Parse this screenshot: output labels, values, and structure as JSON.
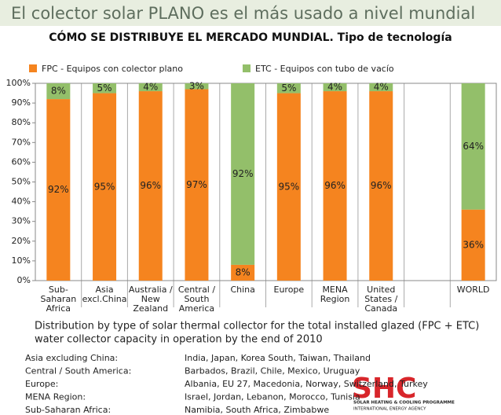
{
  "chart_data": {
    "type": "stacked_bar",
    "title": "El colector solar PLANO es el más usado a nivel mundial",
    "subtitle": "CÓMO SE DISTRIBUYE EL MERCADO MUNDIAL. Tipo de tecnología",
    "categories": [
      "Sub-\nSaharan\nAfrica",
      "Asia\nexcl.China",
      "Australia /\nNew\nZealand",
      "Central /\nSouth\nAmerica",
      "China",
      "Europe",
      "MENA\nRegion",
      "United\nStates /\nCanada",
      null,
      "WORLD"
    ],
    "series": [
      {
        "name": "FPC - Equipos con colector plano",
        "color": "#f5841f",
        "values": [
          92,
          95,
          96,
          97,
          8,
          95,
          96,
          96,
          null,
          36
        ],
        "value_labels": [
          "92%",
          "95%",
          "96%",
          "97%",
          "8%",
          "95%",
          "96%",
          "96%",
          null,
          "36%"
        ]
      },
      {
        "name": "ETC - Equipos con tubo de vacío",
        "color": "#93bf6a",
        "values": [
          8,
          5,
          4,
          3,
          92,
          5,
          4,
          4,
          null,
          64
        ],
        "value_labels": [
          "8%",
          "5%",
          "4%",
          "3%",
          "92%",
          "5%",
          "4%",
          "4%",
          null,
          "64%"
        ]
      }
    ],
    "ylim": [
      0,
      100
    ],
    "yticks": [
      {
        "value": 0,
        "label": "0%"
      },
      {
        "value": 10,
        "label": "10%"
      },
      {
        "value": 20,
        "label": "20%"
      },
      {
        "value": 30,
        "label": "30%"
      },
      {
        "value": 40,
        "label": "40%"
      },
      {
        "value": 50,
        "label": "50%"
      },
      {
        "value": 60,
        "label": "60%"
      },
      {
        "value": 70,
        "label": "70%"
      },
      {
        "value": 80,
        "label": "80%"
      },
      {
        "value": 90,
        "label": "90%"
      },
      {
        "value": 100,
        "label": "100%"
      }
    ],
    "grid": false,
    "caption": [
      "Distribution by type of solar thermal collector for the total installed glazed (FPC + ETC)",
      "water collector capacity in operation by the end of 2010"
    ],
    "notes": [
      [
        "Asia excluding China:",
        "India, Japan, Korea South, Taiwan, Thailand"
      ],
      [
        "Central / South America:",
        "Barbados, Brazil, Chile, Mexico, Uruguay"
      ],
      [
        "Europe:",
        "Albania, EU 27, Macedonia, Norway, Switzerland, Turkey"
      ],
      [
        "MENA Region:",
        "Israel, Jordan, Lebanon, Morocco, Tunisia"
      ],
      [
        "Sub-Saharan Africa:",
        "Namibia, South Africa, Zimbabwe"
      ]
    ],
    "logo": {
      "mark": "SHC",
      "line1": "SOLAR HEATING & COOLING PROGRAMME",
      "line2": "INTERNATIONAL ENERGY AGENCY"
    }
  }
}
